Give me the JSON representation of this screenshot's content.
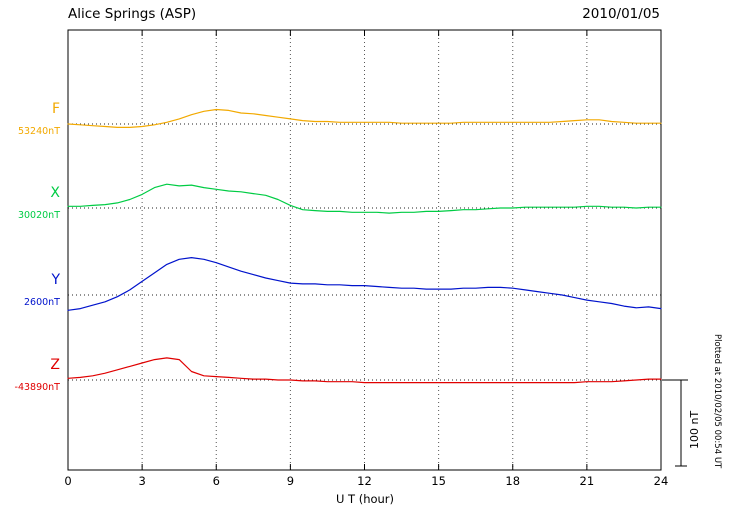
{
  "header": {
    "title": "Alice Springs (ASP)",
    "date": "2010/01/05"
  },
  "axis": {
    "xlabel": "U T (hour)",
    "tick_labels": [
      "0",
      "3",
      "6",
      "9",
      "12",
      "15",
      "18",
      "21",
      "24"
    ]
  },
  "scale_bar": {
    "label": "100 nT",
    "span_nT": 100
  },
  "footer_note": "Plotted at 2010/02/05 00:54 UT",
  "chart_data": {
    "type": "line",
    "title": "Alice Springs (ASP)",
    "subtitle": "2010/01/05",
    "xlabel": "U T (hour)",
    "xlim": [
      0,
      24
    ],
    "x_ticks": [
      0,
      3,
      6,
      9,
      12,
      15,
      18,
      21,
      24
    ],
    "x_step_hours": 0.5,
    "grid": "vertical-dotted",
    "scale_bar_nT": 100,
    "legend_position": "left",
    "series": [
      {
        "name": "F",
        "baseline_nT": 53240,
        "baseline_label": "53240nT",
        "color": "#f2a900",
        "offsets_nT": [
          0,
          -1,
          -2,
          -3,
          -4,
          -4,
          -3,
          -1,
          2,
          6,
          11,
          15,
          17,
          16,
          13,
          12,
          10,
          8,
          6,
          4,
          3,
          3,
          2,
          2,
          2,
          2,
          2,
          1,
          1,
          1,
          1,
          1,
          2,
          2,
          2,
          2,
          2,
          2,
          2,
          2,
          3,
          4,
          5,
          5,
          3,
          2,
          1,
          1,
          1
        ]
      },
      {
        "name": "X",
        "baseline_nT": 30020,
        "baseline_label": "30020nT",
        "color": "#00cc44",
        "offsets_nT": [
          2,
          2,
          3,
          4,
          6,
          10,
          16,
          24,
          28,
          26,
          27,
          24,
          22,
          20,
          19,
          17,
          15,
          10,
          3,
          -2,
          -3,
          -4,
          -4,
          -5,
          -5,
          -5,
          -6,
          -5,
          -5,
          -4,
          -4,
          -3,
          -2,
          -2,
          -1,
          0,
          0,
          1,
          1,
          1,
          1,
          1,
          2,
          2,
          1,
          1,
          0,
          1,
          1
        ]
      },
      {
        "name": "Y",
        "baseline_nT": 2600,
        "baseline_label": "2600nT",
        "color": "#0013cc",
        "offsets_nT": [
          -18,
          -16,
          -12,
          -8,
          -2,
          6,
          16,
          26,
          36,
          42,
          44,
          42,
          38,
          33,
          28,
          24,
          20,
          17,
          14,
          13,
          13,
          12,
          12,
          11,
          11,
          10,
          9,
          8,
          8,
          7,
          7,
          7,
          8,
          8,
          9,
          9,
          8,
          6,
          4,
          2,
          0,
          -3,
          -6,
          -8,
          -10,
          -13,
          -15,
          -14,
          -16
        ]
      },
      {
        "name": "Z",
        "baseline_nT": -43890,
        "baseline_label": "-43890nT",
        "color": "#e00000",
        "offsets_nT": [
          2,
          3,
          5,
          8,
          12,
          16,
          20,
          24,
          26,
          24,
          10,
          5,
          4,
          3,
          2,
          1,
          1,
          0,
          0,
          -1,
          -1,
          -2,
          -2,
          -2,
          -3,
          -3,
          -3,
          -3,
          -3,
          -3,
          -3,
          -3,
          -3,
          -3,
          -3,
          -3,
          -3,
          -3,
          -3,
          -3,
          -3,
          -3,
          -2,
          -2,
          -2,
          -1,
          0,
          1,
          1
        ]
      }
    ]
  }
}
